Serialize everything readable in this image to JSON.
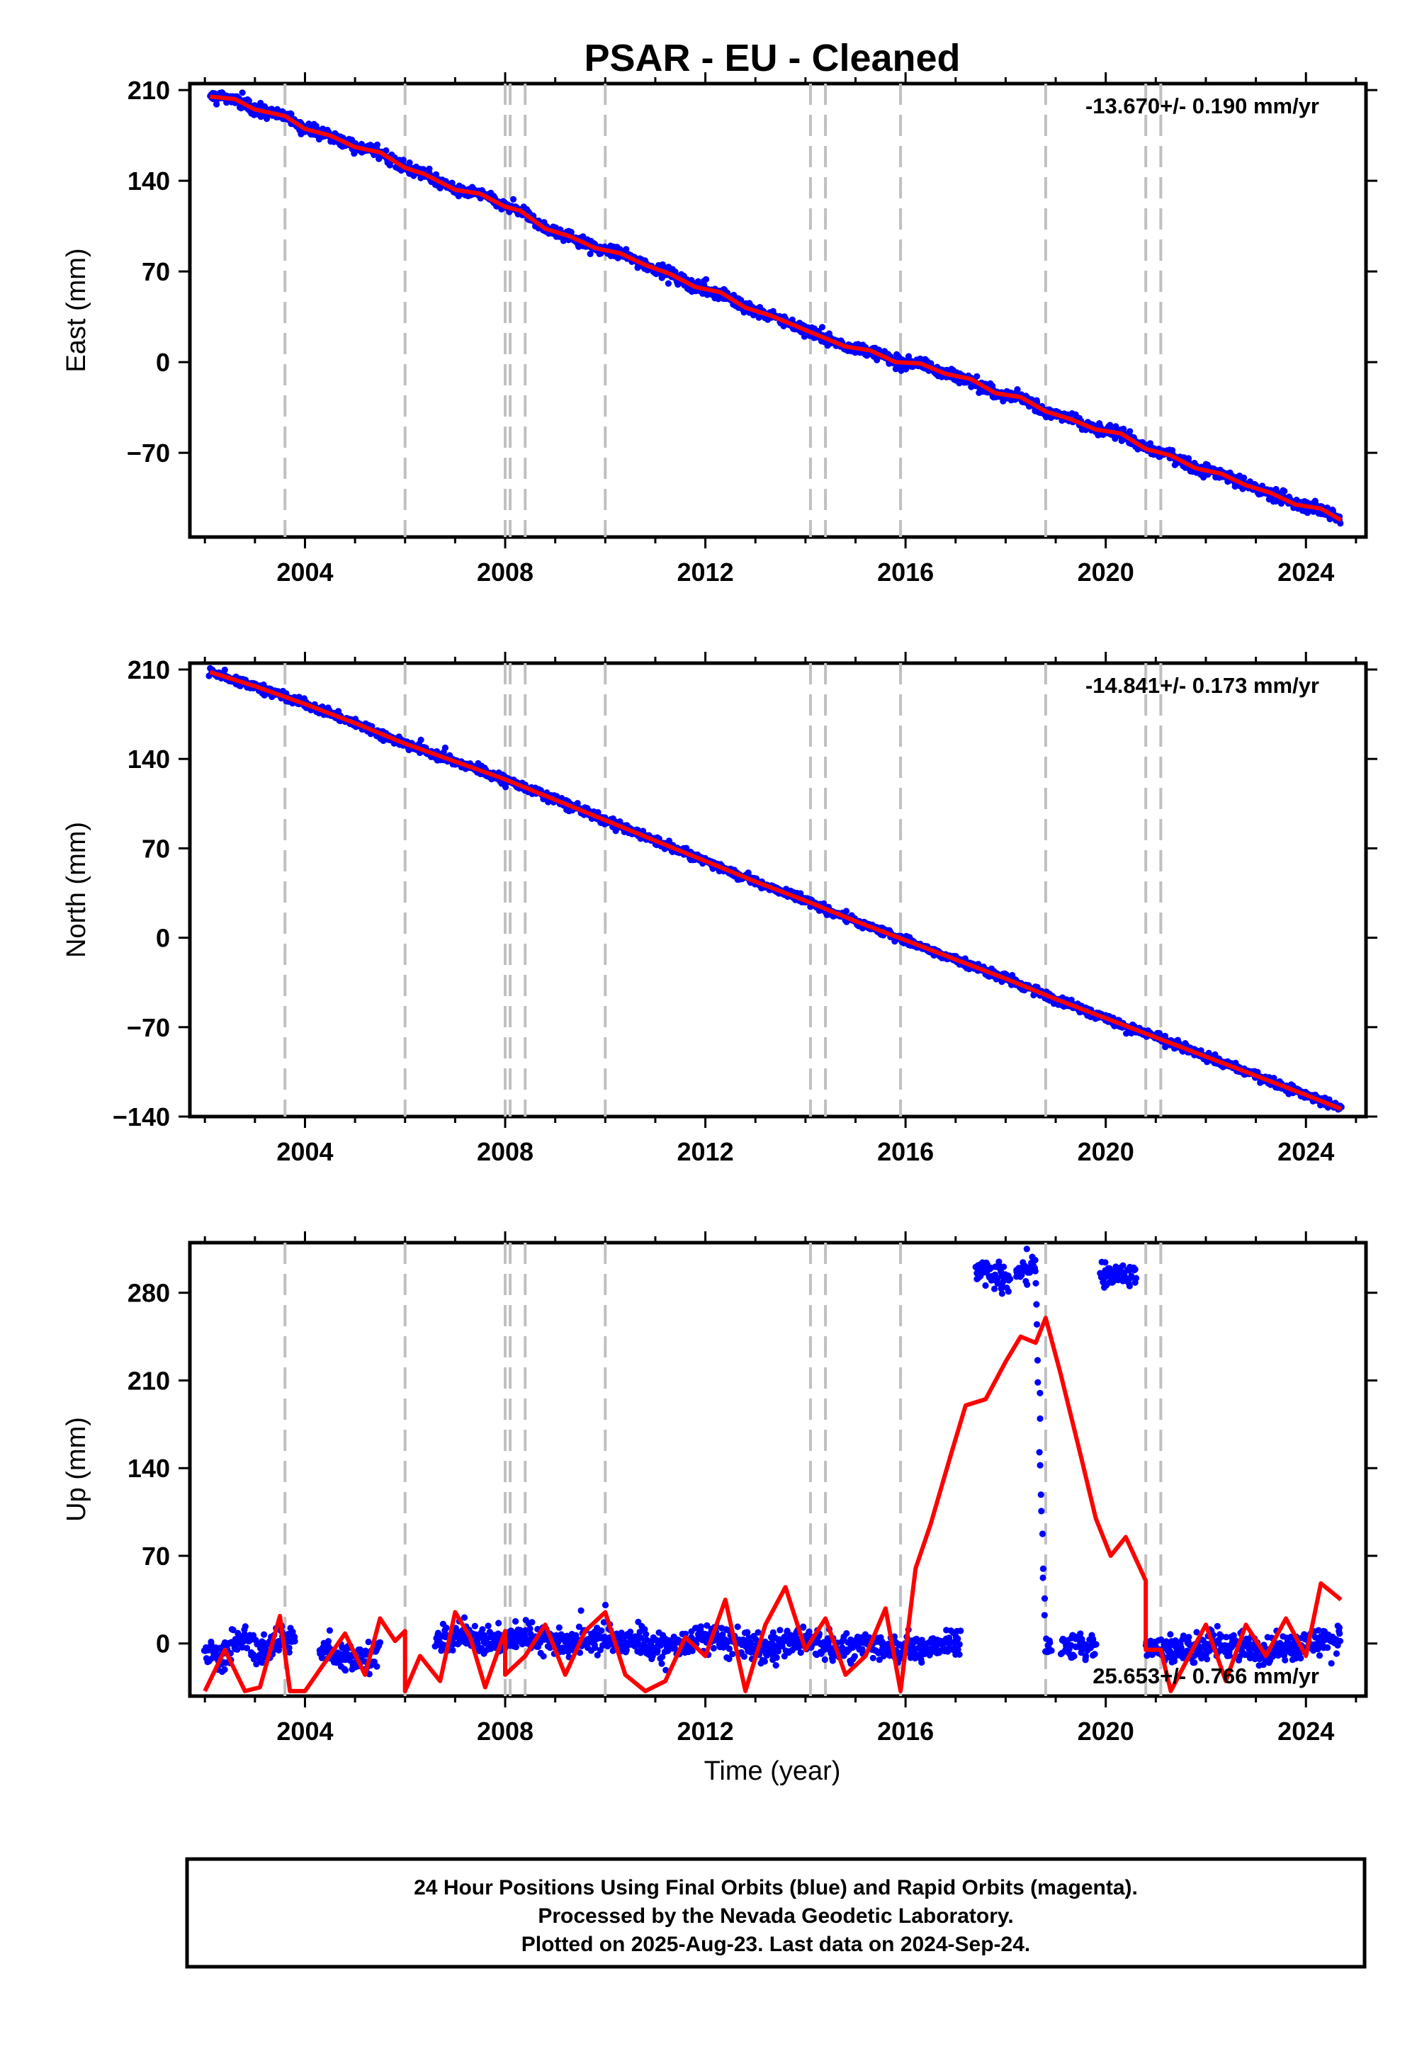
{
  "title": "PSAR  - EU - Cleaned",
  "xlabel": "Time (year)",
  "footer": [
    "24 Hour Positions Using Final Orbits (blue) and Rapid Orbits (magenta).",
    "Processed by the Nevada Geodetic Laboratory.",
    "Plotted on 2025-Aug-23. Last data on 2024-Sep-24."
  ],
  "colors": {
    "data": "#0000ff",
    "model": "#ff0000",
    "steps": "#c0c0c0",
    "axis": "#000000"
  },
  "chart_data": [
    {
      "type": "scatter",
      "panel": "east",
      "ylabel": "East (mm)",
      "rate_label": "-13.670+/- 0.190 mm/yr",
      "xlim": [
        2001.7,
        2025.2
      ],
      "ylim": [
        -135,
        215
      ],
      "x_ticks": [
        2004,
        2008,
        2012,
        2016,
        2020,
        2024
      ],
      "x_tick_labels": [
        "2004",
        "2008",
        "2012",
        "2016",
        "2020",
        "2024"
      ],
      "y_ticks": [
        210,
        140,
        70,
        0,
        -70
      ],
      "y_tick_labels": [
        "210",
        "140",
        "70",
        "0",
        "−70"
      ],
      "step_epochs": [
        2003.6,
        2006.0,
        2008.0,
        2008.1,
        2008.4,
        2010.0,
        2014.1,
        2014.4,
        2015.9,
        2018.8,
        2020.8,
        2021.1
      ],
      "gaps": [],
      "series": [
        {
          "role": "model",
          "x": [
            2002.1,
            2002.6,
            2003.0,
            2003.6,
            2004.0,
            2004.5,
            2005.0,
            2005.5,
            2006.0,
            2006.4,
            2007.0,
            2007.5,
            2008.0,
            2008.3,
            2008.8,
            2009.3,
            2009.8,
            2010.3,
            2010.8,
            2011.3,
            2011.8,
            2012.3,
            2012.8,
            2013.3,
            2013.8,
            2014.3,
            2014.8,
            2015.3,
            2015.8,
            2016.3,
            2016.8,
            2017.3,
            2017.8,
            2018.3,
            2018.8,
            2019.3,
            2019.8,
            2020.3,
            2020.8,
            2021.3,
            2021.8,
            2022.3,
            2022.8,
            2023.3,
            2023.8,
            2024.3,
            2024.7
          ],
          "y": [
            205,
            203,
            195,
            190,
            180,
            175,
            166,
            162,
            150,
            145,
            133,
            130,
            120,
            117,
            103,
            97,
            88,
            84,
            75,
            68,
            58,
            54,
            42,
            36,
            28,
            20,
            12,
            9,
            0,
            -1,
            -9,
            -13,
            -24,
            -27,
            -38,
            -44,
            -52,
            -55,
            -67,
            -72,
            -82,
            -86,
            -95,
            -101,
            -110,
            -113,
            -122
          ]
        },
        {
          "role": "observed",
          "jitter": 3.8,
          "x": [
            2002.1,
            2002.6,
            2003.0,
            2003.6,
            2004.0,
            2004.5,
            2005.0,
            2005.5,
            2006.0,
            2006.4,
            2007.0,
            2007.5,
            2008.0,
            2008.3,
            2008.8,
            2009.3,
            2009.8,
            2010.3,
            2010.8,
            2011.3,
            2011.8,
            2012.3,
            2012.8,
            2013.3,
            2013.8,
            2014.3,
            2014.8,
            2015.3,
            2015.8,
            2016.3,
            2016.8,
            2017.3,
            2017.8,
            2018.3,
            2018.8,
            2019.3,
            2019.8,
            2020.3,
            2020.8,
            2021.3,
            2021.8,
            2022.3,
            2022.8,
            2023.3,
            2023.8,
            2024.3,
            2024.7
          ],
          "y": [
            205,
            203,
            195,
            190,
            180,
            175,
            166,
            162,
            150,
            145,
            133,
            130,
            120,
            117,
            103,
            97,
            88,
            84,
            75,
            68,
            58,
            54,
            42,
            36,
            28,
            20,
            12,
            9,
            0,
            -1,
            -9,
            -13,
            -24,
            -27,
            -38,
            -44,
            -52,
            -55,
            -67,
            -72,
            -82,
            -86,
            -95,
            -101,
            -110,
            -113,
            -122
          ]
        }
      ]
    },
    {
      "type": "scatter",
      "panel": "north",
      "ylabel": "North (mm)",
      "rate_label": "-14.841+/- 0.173 mm/yr",
      "xlim": [
        2001.7,
        2025.2
      ],
      "ylim": [
        -140,
        215
      ],
      "x_ticks": [
        2004,
        2008,
        2012,
        2016,
        2020,
        2024
      ],
      "x_tick_labels": [
        "2004",
        "2008",
        "2012",
        "2016",
        "2020",
        "2024"
      ],
      "y_ticks": [
        210,
        140,
        70,
        0,
        -70,
        -140
      ],
      "y_tick_labels": [
        "210",
        "140",
        "70",
        "0",
        "−70",
        "−140"
      ],
      "step_epochs": [
        2003.6,
        2006.0,
        2008.0,
        2008.1,
        2008.4,
        2010.0,
        2014.1,
        2014.4,
        2015.9,
        2018.8,
        2020.8,
        2021.1
      ],
      "gaps": [],
      "series": [
        {
          "role": "model",
          "x": [
            2002.1,
            2003.0,
            2004.0,
            2005.0,
            2006.0,
            2007.0,
            2008.0,
            2009.0,
            2010.0,
            2011.0,
            2012.0,
            2013.0,
            2014.0,
            2015.0,
            2016.0,
            2017.0,
            2018.0,
            2019.0,
            2020.0,
            2021.0,
            2022.0,
            2023.0,
            2024.0,
            2024.7
          ],
          "y": [
            208,
            197,
            183,
            168,
            152,
            138,
            124,
            108,
            92,
            76,
            60,
            44,
            29,
            13,
            -2,
            -17,
            -32,
            -48,
            -63,
            -78,
            -93,
            -108,
            -123,
            -134
          ]
        },
        {
          "role": "observed",
          "jitter": 2.8,
          "x": [
            2002.1,
            2003.0,
            2004.0,
            2005.0,
            2006.0,
            2007.0,
            2008.0,
            2009.0,
            2010.0,
            2011.0,
            2012.0,
            2013.0,
            2014.0,
            2015.0,
            2016.0,
            2017.0,
            2018.0,
            2019.0,
            2020.0,
            2021.0,
            2022.0,
            2023.0,
            2024.0,
            2024.7
          ],
          "y": [
            208,
            197,
            183,
            168,
            152,
            138,
            124,
            108,
            92,
            76,
            60,
            44,
            29,
            13,
            -2,
            -17,
            -32,
            -48,
            -63,
            -78,
            -93,
            -108,
            -123,
            -134
          ]
        }
      ]
    },
    {
      "type": "scatter",
      "panel": "up",
      "ylabel": "Up (mm)",
      "rate_label": "25.653+/- 0.766 mm/yr",
      "xlim": [
        2001.7,
        2025.2
      ],
      "ylim": [
        -42,
        320
      ],
      "x_ticks": [
        2004,
        2008,
        2012,
        2016,
        2020,
        2024
      ],
      "x_tick_labels": [
        "2004",
        "2008",
        "2012",
        "2016",
        "2020",
        "2024"
      ],
      "y_ticks": [
        280,
        210,
        140,
        70,
        0
      ],
      "y_tick_labels": [
        "280",
        "210",
        "140",
        "70",
        "0"
      ],
      "step_epochs": [
        2003.6,
        2006.0,
        2008.0,
        2008.1,
        2008.4,
        2010.0,
        2014.1,
        2014.4,
        2015.9,
        2018.8,
        2020.8,
        2021.1
      ],
      "gaps": [
        [
          2003.8,
          2004.3
        ],
        [
          2005.5,
          2006.6
        ],
        [
          2017.1,
          2017.4
        ],
        [
          2018.1,
          2018.2
        ],
        [
          2018.9,
          2019.1
        ],
        [
          2019.8,
          2019.9
        ],
        [
          2020.6,
          2020.8
        ]
      ],
      "series": [
        {
          "role": "model",
          "x": [
            2002.0,
            2002.4,
            2002.8,
            2003.1,
            2003.5,
            2003.7,
            2004.0,
            2004.4,
            2004.8,
            2005.2,
            2005.5,
            2005.8,
            2006.0,
            2006.0,
            2006.3,
            2006.7,
            2007.0,
            2007.3,
            2007.6,
            2008.0,
            2008.0,
            2008.4,
            2008.8,
            2009.2,
            2009.6,
            2010.0,
            2010.4,
            2010.8,
            2011.2,
            2011.6,
            2012.0,
            2012.4,
            2012.8,
            2013.2,
            2013.6,
            2014.0,
            2014.4,
            2014.8,
            2015.2,
            2015.6,
            2015.9,
            2016.2,
            2016.5,
            2016.9,
            2017.2,
            2017.6,
            2018.0,
            2018.3,
            2018.6,
            2018.8,
            2019.1,
            2019.5,
            2019.8,
            2020.1,
            2020.4,
            2020.8,
            2020.8,
            2021.1,
            2021.3,
            2021.6,
            2022.0,
            2022.4,
            2022.8,
            2023.2,
            2023.6,
            2024.0,
            2024.3,
            2024.7
          ],
          "y": [
            -38,
            -5,
            -38,
            -35,
            22,
            -38,
            -38,
            -15,
            8,
            -25,
            20,
            2,
            10,
            -38,
            -10,
            -30,
            25,
            5,
            -35,
            10,
            -25,
            -10,
            15,
            -25,
            10,
            25,
            -25,
            -38,
            -30,
            5,
            -10,
            35,
            -38,
            15,
            45,
            -5,
            20,
            -25,
            -10,
            28,
            -38,
            60,
            95,
            150,
            190,
            195,
            225,
            245,
            240,
            260,
            215,
            150,
            100,
            70,
            85,
            50,
            -5,
            -5,
            -38,
            -15,
            15,
            -30,
            15,
            -10,
            20,
            -10,
            48,
            35
          ]
        },
        {
          "role": "observed",
          "jitter": 9,
          "x": [
            2002.0,
            2002.4,
            2002.8,
            2003.1,
            2003.5,
            2004.3,
            2004.8,
            2005.2,
            2005.5,
            2006.6,
            2007.0,
            2007.3,
            2007.6,
            2008.0,
            2008.4,
            2008.8,
            2009.2,
            2009.6,
            2010.0,
            2010.4,
            2010.8,
            2011.2,
            2011.6,
            2012.0,
            2012.4,
            2012.8,
            2013.2,
            2013.6,
            2014.0,
            2014.4,
            2014.8,
            2015.2,
            2015.6,
            2015.9,
            2016.2,
            2016.5,
            2016.9,
            2017.1,
            2017.4,
            2017.7,
            2018.1,
            2018.2,
            2018.4,
            2018.6,
            2018.8,
            2019.1,
            2019.4,
            2019.8,
            2019.9,
            2020.2,
            2020.6,
            2020.8,
            2021.1,
            2021.3,
            2021.6,
            2022.0,
            2022.4,
            2022.8,
            2023.2,
            2023.6,
            2024.0,
            2024.3,
            2024.7
          ],
          "y": [
            -5,
            -10,
            5,
            -8,
            5,
            -5,
            -10,
            -12,
            -5,
            0,
            5,
            8,
            0,
            3,
            8,
            5,
            0,
            3,
            5,
            2,
            0,
            -3,
            0,
            5,
            2,
            -2,
            -5,
            0,
            3,
            -2,
            -5,
            0,
            -3,
            -2,
            -5,
            -2,
            0,
            -3,
            298,
            295,
            292,
            297,
            298,
            300,
            -2,
            -3,
            -2,
            0,
            292,
            295,
            296,
            0,
            -5,
            -3,
            -5,
            -2,
            0,
            -2,
            -5,
            -3,
            0,
            3,
            5
          ]
        }
      ]
    }
  ]
}
